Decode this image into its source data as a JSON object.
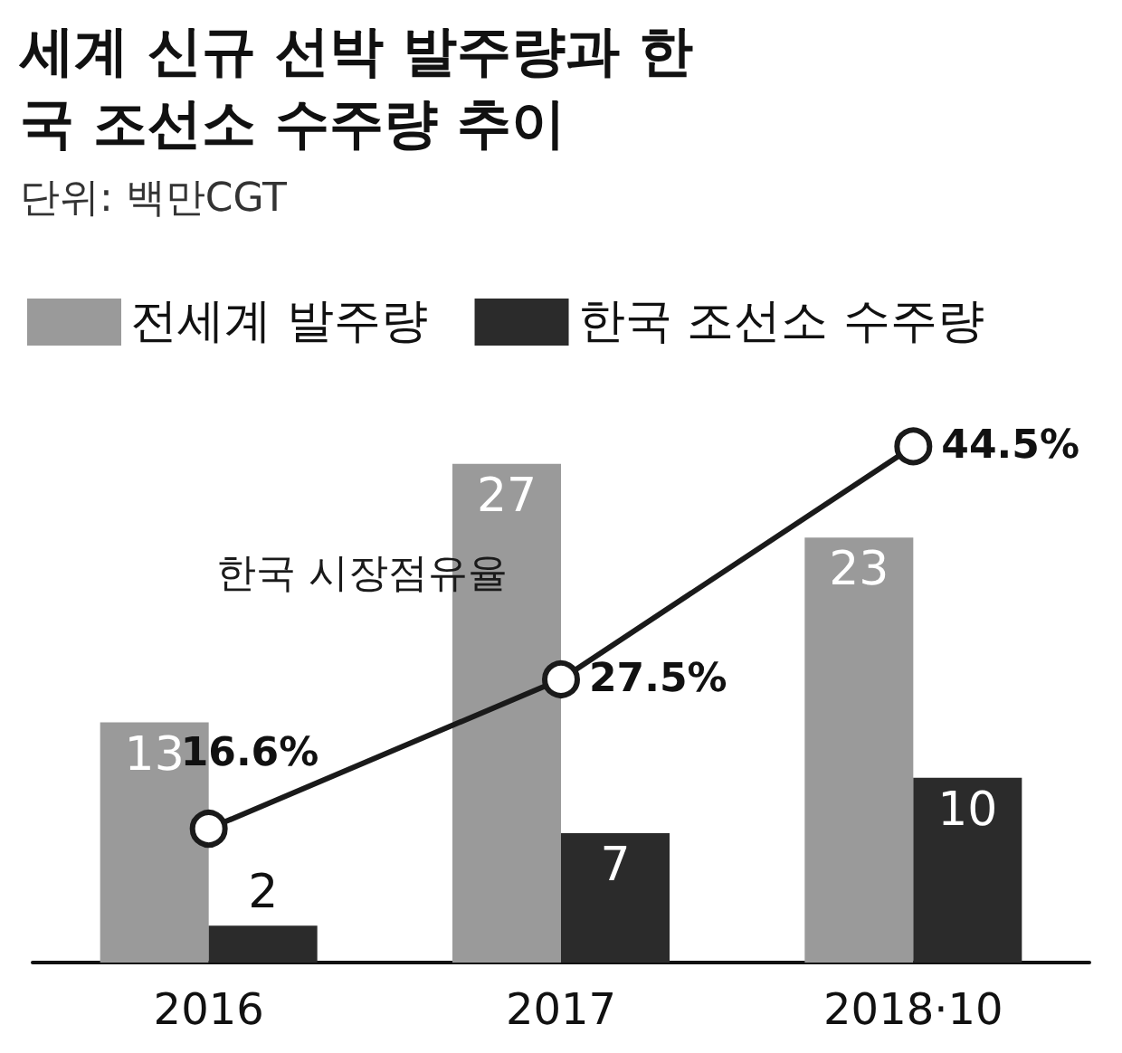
{
  "chart_data": {
    "type": "bar",
    "title": "세계 신규 선박 발주량과 한국 조선소 수주량 추이",
    "subtitle": "단위: 백만CGT",
    "categories": [
      "2016",
      "2017",
      "2018·10"
    ],
    "series": [
      {
        "name": "전세계 발주량",
        "color": "#9a9a9a",
        "values": [
          13,
          27,
          23
        ]
      },
      {
        "name": "한국 조선소 수주량",
        "color": "#2b2b2b",
        "values": [
          2,
          7,
          10
        ]
      },
      {
        "name": "한국 시장점유율",
        "type": "line",
        "axis": "y2",
        "color": "#1a1a1a",
        "values": [
          16.6,
          27.5,
          44.5
        ],
        "value_labels": [
          "16.6%",
          "27.5%",
          "44.5%"
        ]
      }
    ],
    "data_labels": true,
    "legend": "top left",
    "grid": false,
    "tick_labels": "x",
    "marker": "circle",
    "line_style": "solid"
  }
}
